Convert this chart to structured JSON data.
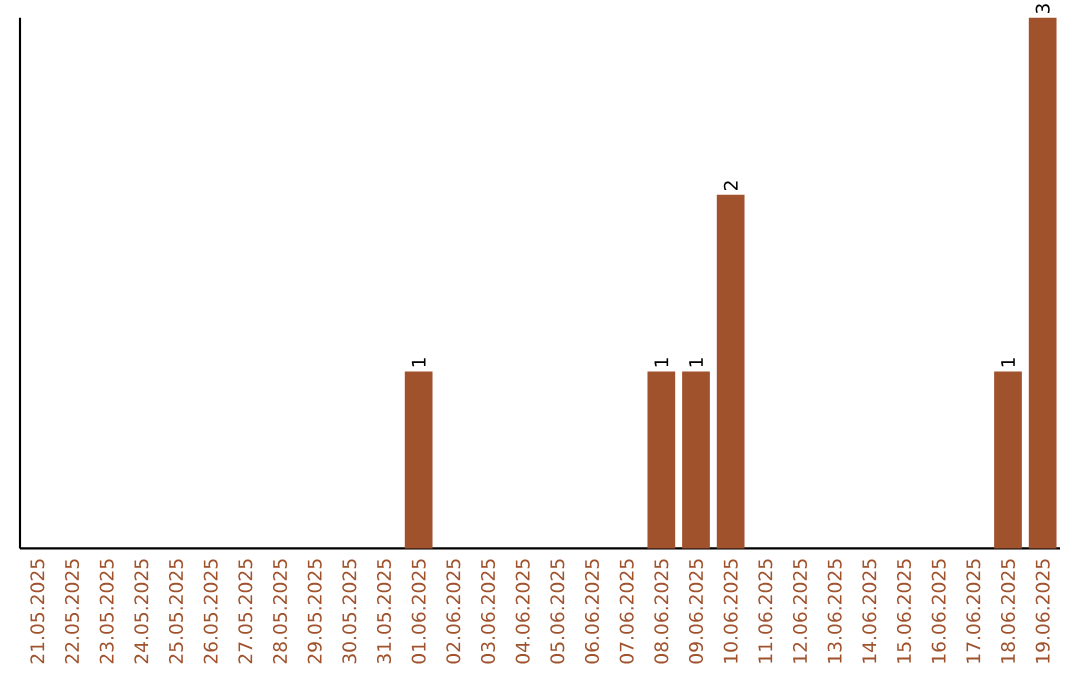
{
  "chart_data": {
    "type": "bar",
    "categories": [
      "21.05.2025",
      "22.05.2025",
      "23.05.2025",
      "24.05.2025",
      "25.05.2025",
      "26.05.2025",
      "27.05.2025",
      "28.05.2025",
      "29.05.2025",
      "30.05.2025",
      "31.05.2025",
      "01.06.2025",
      "02.06.2025",
      "03.06.2025",
      "04.06.2025",
      "05.06.2025",
      "06.06.2025",
      "07.06.2025",
      "08.06.2025",
      "09.06.2025",
      "10.06.2025",
      "11.06.2025",
      "12.06.2025",
      "13.06.2025",
      "14.06.2025",
      "15.06.2025",
      "16.06.2025",
      "17.06.2025",
      "18.06.2025",
      "19.06.2025"
    ],
    "values": [
      0,
      0,
      0,
      0,
      0,
      0,
      0,
      0,
      0,
      0,
      0,
      1,
      0,
      0,
      0,
      0,
      0,
      0,
      1,
      1,
      2,
      0,
      0,
      0,
      0,
      0,
      0,
      0,
      1,
      3
    ],
    "value_labels": [
      null,
      null,
      null,
      null,
      null,
      null,
      null,
      null,
      null,
      null,
      null,
      "1",
      null,
      null,
      null,
      null,
      null,
      null,
      "1",
      "1",
      "2",
      null,
      null,
      null,
      null,
      null,
      null,
      null,
      "1",
      "3"
    ],
    "color": "#a0522d",
    "tick_labels": "x"
  }
}
